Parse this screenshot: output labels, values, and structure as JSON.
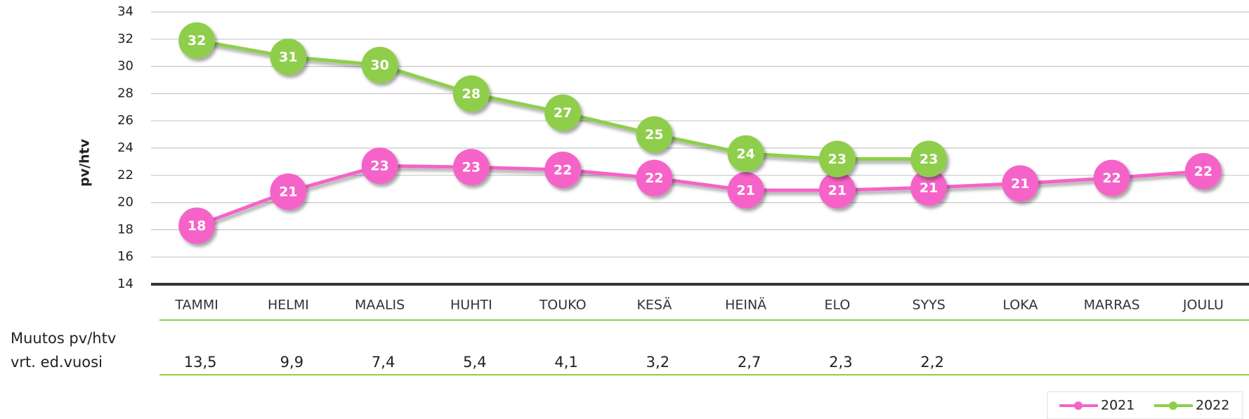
{
  "chart_data": {
    "type": "line",
    "y_label": "pv/htv",
    "categories": [
      "TAMMI",
      "HELMI",
      "MAALIS",
      "HUHTI",
      "TOUKO",
      "KESÄ",
      "HEINÄ",
      "ELO",
      "SYYS",
      "LOKA",
      "MARRAS",
      "JOULU"
    ],
    "series": [
      {
        "name": "2021",
        "color": "#f564c8",
        "values": [
          18.3,
          20.8,
          22.7,
          22.6,
          22.4,
          21.8,
          20.9,
          20.9,
          21.1,
          21.4,
          21.8,
          22.3
        ],
        "value_labels": [
          "18",
          "21",
          "23",
          "23",
          "22",
          "22",
          "21",
          "21",
          "21",
          "21",
          "22",
          "22"
        ]
      },
      {
        "name": "2022",
        "color": "#8fce4c",
        "values": [
          31.9,
          30.7,
          30.1,
          28.0,
          26.6,
          25.0,
          23.6,
          23.2,
          23.2,
          null,
          null,
          null
        ],
        "value_labels": [
          "32",
          "31",
          "30",
          "28",
          "27",
          "25",
          "24",
          "23",
          "23",
          null,
          null,
          null
        ]
      }
    ],
    "ylim": [
      14,
      34
    ],
    "yticks": [
      14,
      16,
      18,
      20,
      22,
      24,
      26,
      28,
      30,
      32,
      34
    ],
    "grid": true,
    "legend": "bottom-right"
  },
  "table": {
    "row_label": [
      "Muutos pv/htv",
      "vrt. ed.vuosi"
    ],
    "values": [
      "13,5",
      "9,9",
      "7,4",
      "5,4",
      "4,1",
      "3,2",
      "2,7",
      "2,3",
      "2,2"
    ]
  }
}
